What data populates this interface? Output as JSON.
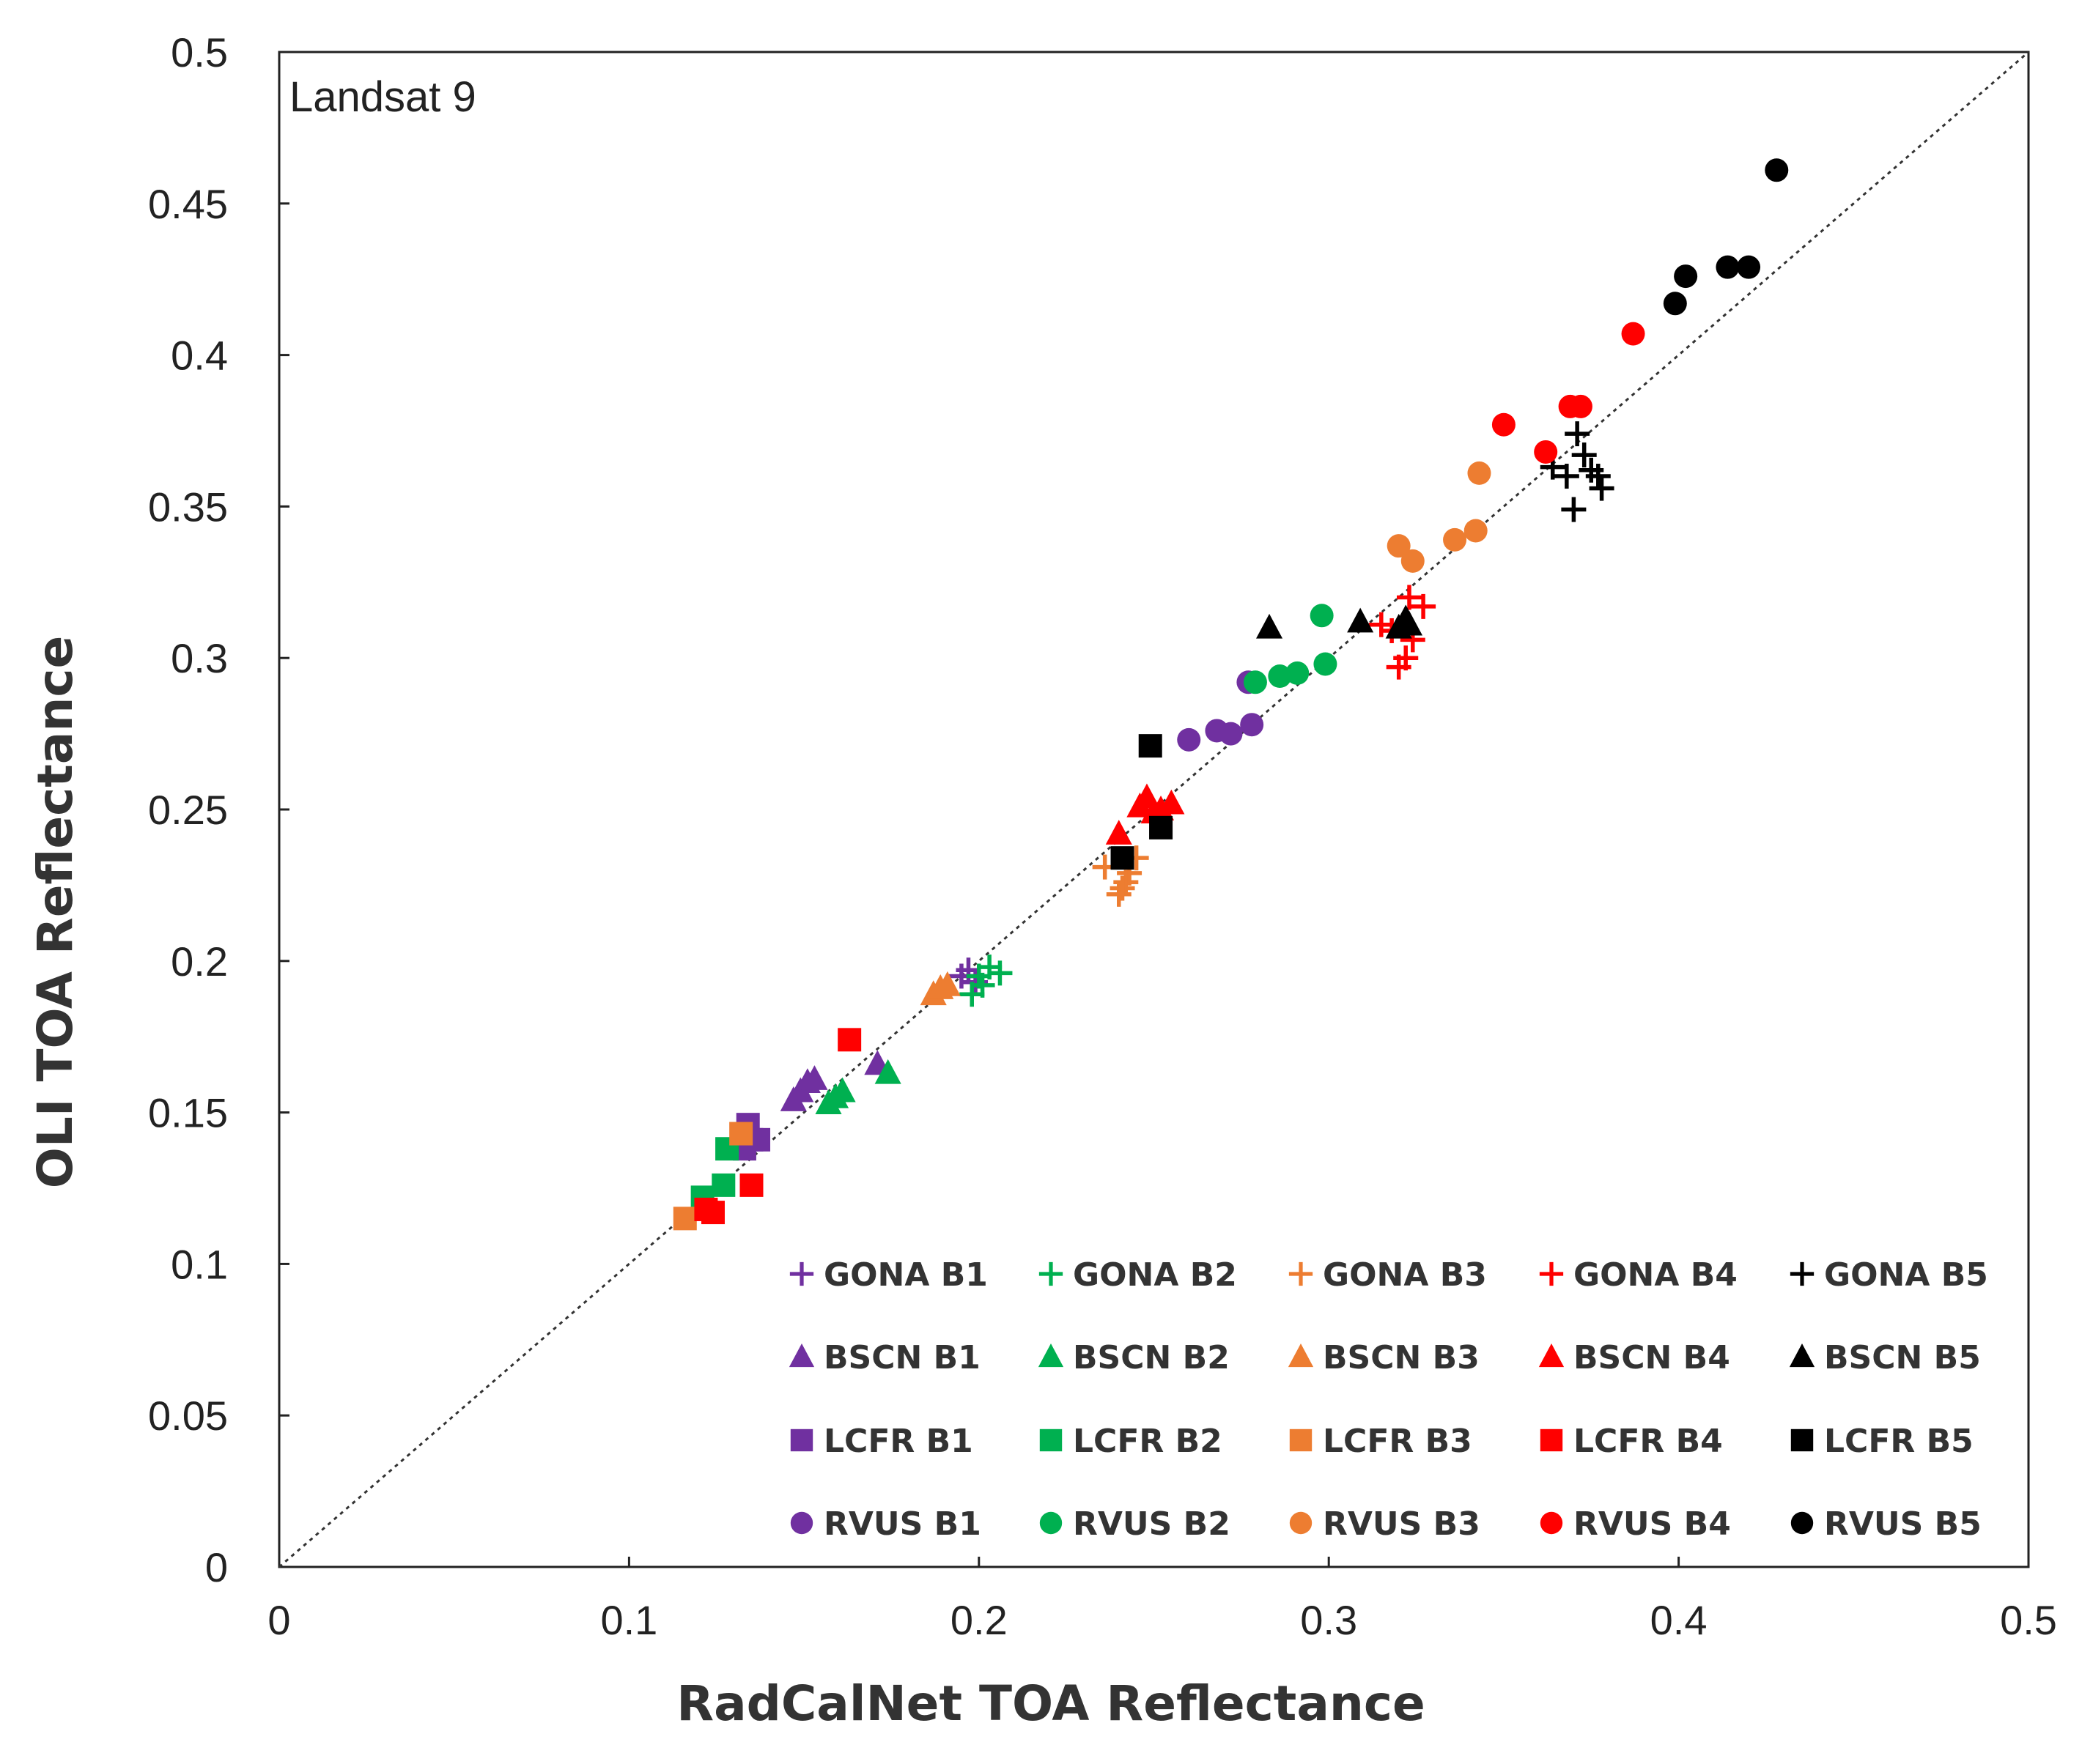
{
  "chart_data": {
    "type": "scatter",
    "panel_label": "Landsat 9",
    "xlabel": "RadCalNet TOA Reflectance",
    "ylabel": "OLI TOA Reflectance",
    "xlim": [
      0,
      0.5
    ],
    "ylim": [
      0,
      0.5
    ],
    "x_ticks": [
      "0",
      "0.1",
      "0.2",
      "0.3",
      "0.4",
      "0.5"
    ],
    "y_ticks": [
      "0",
      "0.05",
      "0.1",
      "0.15",
      "0.2",
      "0.25",
      "0.3",
      "0.35",
      "0.4",
      "0.45",
      "0.5"
    ],
    "reference_line": "1:1 dotted",
    "legend_position": "bottom-right",
    "colors": {
      "B1": "#7030a0",
      "B2": "#00b050",
      "B3": "#ed7d31",
      "B4": "#ff0000",
      "B5": "#000000"
    },
    "series": [
      {
        "name": "GONA B1",
        "site": "GONA",
        "band": "B1",
        "marker": "plus",
        "color": "#7030a0",
        "points": [
          [
            0.195,
            0.195
          ],
          [
            0.197,
            0.197
          ],
          [
            0.199,
            0.193
          ]
        ]
      },
      {
        "name": "GONA B2",
        "site": "GONA",
        "band": "B2",
        "marker": "plus",
        "color": "#00b050",
        "points": [
          [
            0.198,
            0.189
          ],
          [
            0.2,
            0.195
          ],
          [
            0.203,
            0.198
          ],
          [
            0.206,
            0.196
          ],
          [
            0.201,
            0.192
          ]
        ]
      },
      {
        "name": "GONA B3",
        "site": "GONA",
        "band": "B3",
        "marker": "plus",
        "color": "#ed7d31",
        "points": [
          [
            0.236,
            0.231
          ],
          [
            0.24,
            0.222
          ],
          [
            0.242,
            0.226
          ],
          [
            0.245,
            0.234
          ],
          [
            0.243,
            0.229
          ],
          [
            0.241,
            0.224
          ]
        ]
      },
      {
        "name": "GONA B4",
        "site": "GONA",
        "band": "B4",
        "marker": "plus",
        "color": "#ff0000",
        "points": [
          [
            0.318,
            0.309
          ],
          [
            0.32,
            0.297
          ],
          [
            0.322,
            0.3
          ],
          [
            0.324,
            0.306
          ],
          [
            0.323,
            0.32
          ],
          [
            0.327,
            0.317
          ],
          [
            0.315,
            0.311
          ]
        ]
      },
      {
        "name": "GONA B5",
        "site": "GONA",
        "band": "B5",
        "marker": "plus",
        "color": "#000000",
        "points": [
          [
            0.364,
            0.363
          ],
          [
            0.368,
            0.36
          ],
          [
            0.37,
            0.349
          ],
          [
            0.371,
            0.374
          ],
          [
            0.373,
            0.367
          ],
          [
            0.375,
            0.362
          ],
          [
            0.378,
            0.356
          ],
          [
            0.377,
            0.36
          ]
        ]
      },
      {
        "name": "BSCN B1",
        "site": "BSCN",
        "band": "B1",
        "marker": "triangle",
        "color": "#7030a0",
        "points": [
          [
            0.147,
            0.154
          ],
          [
            0.149,
            0.157
          ],
          [
            0.151,
            0.16
          ],
          [
            0.153,
            0.161
          ],
          [
            0.171,
            0.166
          ]
        ]
      },
      {
        "name": "BSCN B2",
        "site": "BSCN",
        "band": "B2",
        "marker": "triangle",
        "color": "#00b050",
        "points": [
          [
            0.157,
            0.153
          ],
          [
            0.159,
            0.155
          ],
          [
            0.161,
            0.157
          ],
          [
            0.174,
            0.163
          ]
        ]
      },
      {
        "name": "BSCN B3",
        "site": "BSCN",
        "band": "B3",
        "marker": "triangle",
        "color": "#ed7d31",
        "points": [
          [
            0.187,
            0.189
          ],
          [
            0.189,
            0.191
          ],
          [
            0.191,
            0.192
          ]
        ]
      },
      {
        "name": "BSCN B4",
        "site": "BSCN",
        "band": "B4",
        "marker": "triangle",
        "color": "#ff0000",
        "points": [
          [
            0.24,
            0.242
          ],
          [
            0.246,
            0.251
          ],
          [
            0.248,
            0.254
          ],
          [
            0.25,
            0.249
          ],
          [
            0.252,
            0.25
          ],
          [
            0.255,
            0.252
          ]
        ]
      },
      {
        "name": "BSCN B5",
        "site": "BSCN",
        "band": "B5",
        "marker": "triangle",
        "color": "#000000",
        "points": [
          [
            0.283,
            0.31
          ],
          [
            0.309,
            0.312
          ],
          [
            0.32,
            0.31
          ],
          [
            0.322,
            0.313
          ],
          [
            0.323,
            0.311
          ]
        ]
      },
      {
        "name": "LCFR B1",
        "site": "LCFR",
        "band": "B1",
        "marker": "square",
        "color": "#7030a0",
        "points": [
          [
            0.133,
            0.138
          ],
          [
            0.135,
            0.141
          ],
          [
            0.134,
            0.146
          ],
          [
            0.137,
            0.141
          ]
        ]
      },
      {
        "name": "LCFR B2",
        "site": "LCFR",
        "band": "B2",
        "marker": "square",
        "color": "#00b050",
        "points": [
          [
            0.121,
            0.122
          ],
          [
            0.127,
            0.126
          ],
          [
            0.128,
            0.138
          ]
        ]
      },
      {
        "name": "LCFR B3",
        "site": "LCFR",
        "band": "B3",
        "marker": "square",
        "color": "#ed7d31",
        "points": [
          [
            0.116,
            0.115
          ],
          [
            0.132,
            0.143
          ]
        ]
      },
      {
        "name": "LCFR B4",
        "site": "LCFR",
        "band": "B4",
        "marker": "square",
        "color": "#ff0000",
        "points": [
          [
            0.122,
            0.118
          ],
          [
            0.124,
            0.117
          ],
          [
            0.135,
            0.126
          ],
          [
            0.163,
            0.174
          ]
        ]
      },
      {
        "name": "LCFR B5",
        "site": "LCFR",
        "band": "B5",
        "marker": "square",
        "color": "#000000",
        "points": [
          [
            0.241,
            0.234
          ],
          [
            0.249,
            0.271
          ],
          [
            0.252,
            0.244
          ]
        ]
      },
      {
        "name": "RVUS B1",
        "site": "RVUS",
        "band": "B1",
        "marker": "circle",
        "color": "#7030a0",
        "points": [
          [
            0.26,
            0.273
          ],
          [
            0.268,
            0.276
          ],
          [
            0.272,
            0.275
          ],
          [
            0.278,
            0.278
          ],
          [
            0.277,
            0.292
          ]
        ]
      },
      {
        "name": "RVUS B2",
        "site": "RVUS",
        "band": "B2",
        "marker": "circle",
        "color": "#00b050",
        "points": [
          [
            0.279,
            0.292
          ],
          [
            0.286,
            0.294
          ],
          [
            0.291,
            0.295
          ],
          [
            0.299,
            0.298
          ],
          [
            0.298,
            0.314
          ]
        ]
      },
      {
        "name": "RVUS B3",
        "site": "RVUS",
        "band": "B3",
        "marker": "circle",
        "color": "#ed7d31",
        "points": [
          [
            0.32,
            0.337
          ],
          [
            0.324,
            0.332
          ],
          [
            0.336,
            0.339
          ],
          [
            0.342,
            0.342
          ],
          [
            0.343,
            0.361
          ]
        ]
      },
      {
        "name": "RVUS B4",
        "site": "RVUS",
        "band": "B4",
        "marker": "circle",
        "color": "#ff0000",
        "points": [
          [
            0.35,
            0.377
          ],
          [
            0.362,
            0.368
          ],
          [
            0.369,
            0.383
          ],
          [
            0.372,
            0.383
          ],
          [
            0.387,
            0.407
          ]
        ]
      },
      {
        "name": "RVUS B5",
        "site": "RVUS",
        "band": "B5",
        "marker": "circle",
        "color": "#000000",
        "points": [
          [
            0.399,
            0.417
          ],
          [
            0.402,
            0.426
          ],
          [
            0.414,
            0.429
          ],
          [
            0.42,
            0.429
          ],
          [
            0.428,
            0.461
          ]
        ]
      }
    ]
  }
}
